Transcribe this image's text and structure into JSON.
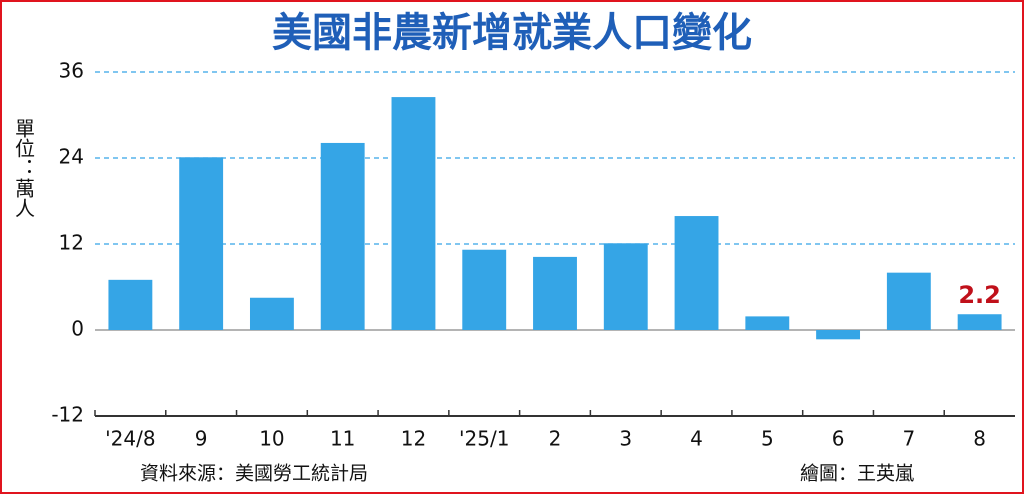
{
  "chart_data": {
    "type": "bar",
    "title": "美國非農新增就業人口變化",
    "y_label": "單位：萬人",
    "categories": [
      "'24/8",
      "9",
      "10",
      "11",
      "12",
      "'25/1",
      "2",
      "3",
      "4",
      "5",
      "6",
      "7",
      "8"
    ],
    "values": [
      7.0,
      24.1,
      4.5,
      26.1,
      32.5,
      11.2,
      10.2,
      12.1,
      15.9,
      1.9,
      -1.3,
      8.0,
      2.2
    ],
    "color": "#35a5e6",
    "ylim": [
      -12,
      36
    ],
    "yticks": [
      -12,
      0,
      12,
      24,
      36
    ],
    "grid": true,
    "source": "資料來源：美國勞工統計局",
    "credit": "繪圖：王英嵐"
  }
}
